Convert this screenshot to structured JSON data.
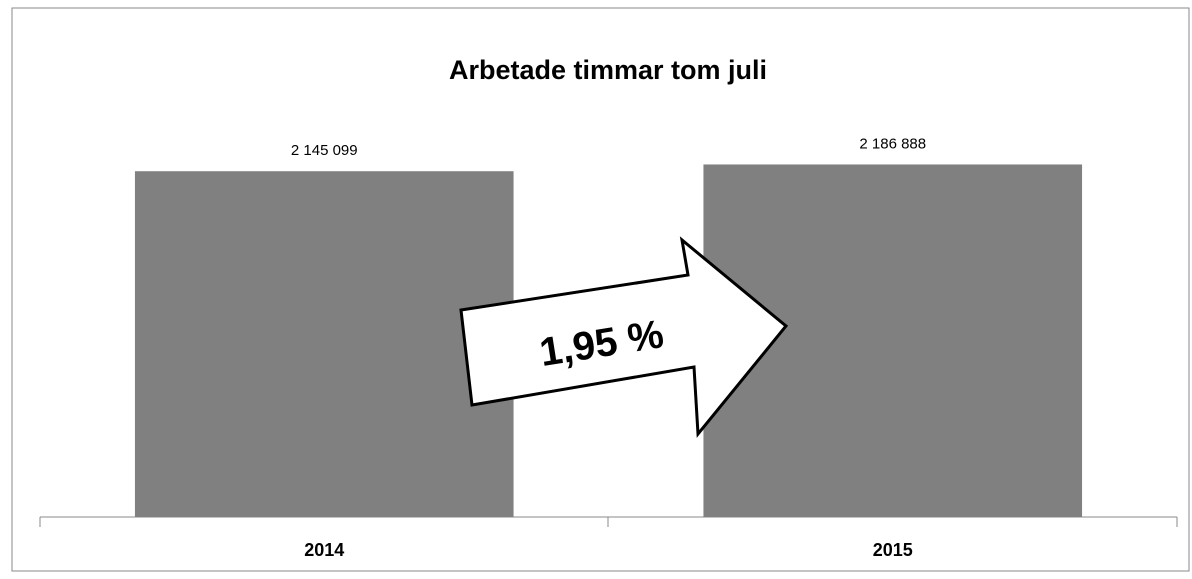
{
  "chart_data": {
    "type": "bar",
    "title": "Arbetade timmar tom juli",
    "categories": [
      "2014",
      "2015"
    ],
    "values": [
      2145099,
      2186888
    ],
    "value_labels": [
      "2 145 099",
      "2 186 888"
    ],
    "color": "#808080",
    "ylim": [
      0,
      2500000
    ],
    "annotation": "1,95 %"
  }
}
